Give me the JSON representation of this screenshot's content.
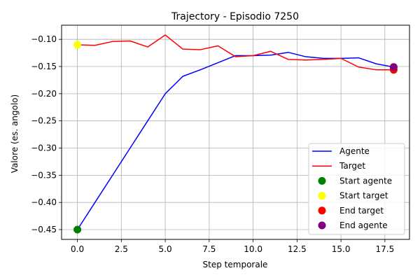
{
  "chart_data": {
    "type": "line",
    "title": "Trajectory - Episodio 7250",
    "xlabel": "Step temporale",
    "ylabel": "Valore (es. angolo)",
    "xlim": [
      -0.9,
      18.9
    ],
    "ylim": [
      -0.468,
      -0.074
    ],
    "xticks": [
      0.0,
      2.5,
      5.0,
      7.5,
      10.0,
      12.5,
      15.0,
      17.5
    ],
    "xtick_labels": [
      "0.0",
      "2.5",
      "5.0",
      "7.5",
      "10.0",
      "12.5",
      "15.0",
      "17.5"
    ],
    "yticks": [
      -0.45,
      -0.4,
      -0.35,
      -0.3,
      -0.25,
      -0.2,
      -0.15,
      -0.1
    ],
    "ytick_labels": [
      "−0.45",
      "−0.40",
      "−0.35",
      "−0.30",
      "−0.25",
      "−0.20",
      "−0.15",
      "−0.10"
    ],
    "grid": true,
    "legend_position": "lower-right",
    "x": [
      0,
      1,
      2,
      3,
      4,
      5,
      6,
      7,
      8,
      9,
      10,
      11,
      12,
      13,
      14,
      15,
      16,
      17,
      18
    ],
    "series": [
      {
        "name": "Agente",
        "color": "#0000ff",
        "values": [
          -0.45,
          -0.4,
          -0.35,
          -0.3,
          -0.25,
          -0.2,
          -0.168,
          -0.156,
          -0.143,
          -0.13,
          -0.13,
          -0.129,
          -0.124,
          -0.132,
          -0.135,
          -0.135,
          -0.134,
          -0.145,
          -0.151
        ]
      },
      {
        "name": "Target",
        "color": "#ff0000",
        "values": [
          -0.11,
          -0.111,
          -0.104,
          -0.103,
          -0.114,
          -0.092,
          -0.118,
          -0.119,
          -0.112,
          -0.132,
          -0.13,
          -0.122,
          -0.137,
          -0.138,
          -0.137,
          -0.135,
          -0.151,
          -0.156,
          -0.156
        ]
      }
    ],
    "markers": [
      {
        "name": "Start agente",
        "color": "#008000",
        "x": 0,
        "y": -0.45
      },
      {
        "name": "Start target",
        "color": "#ffff00",
        "x": 0,
        "y": -0.11
      },
      {
        "name": "End target",
        "color": "#ff0000",
        "x": 18,
        "y": -0.156
      },
      {
        "name": "End agente",
        "color": "#800080",
        "x": 18,
        "y": -0.151
      }
    ]
  }
}
